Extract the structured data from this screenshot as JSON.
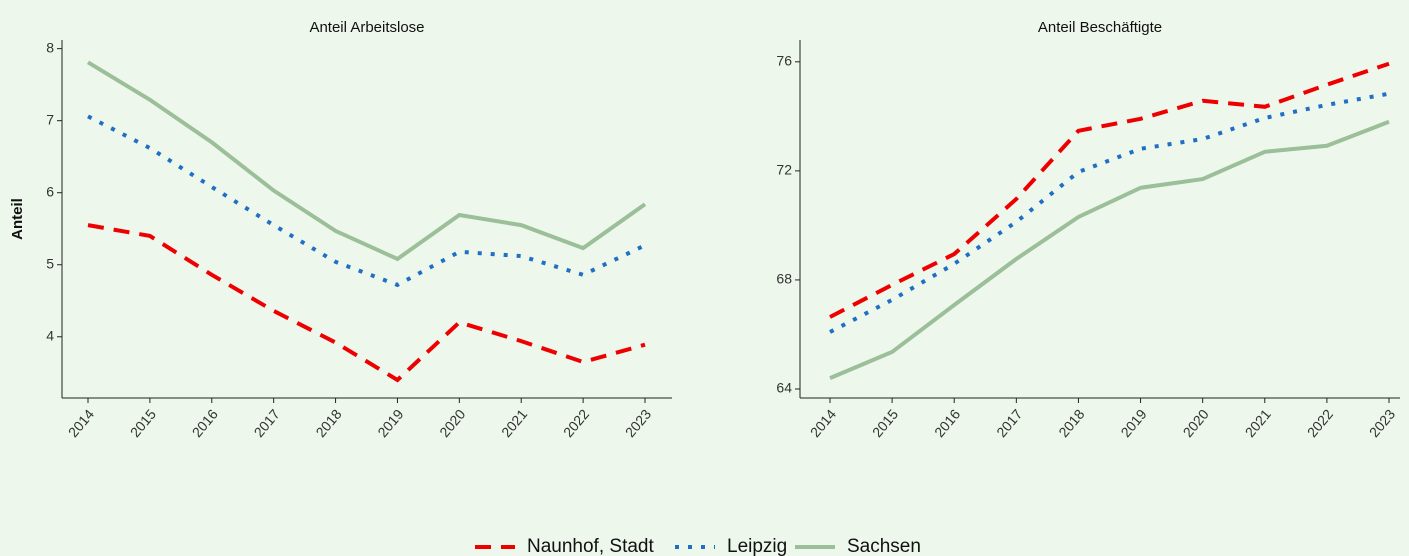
{
  "chart_data": [
    {
      "type": "line",
      "title": "Anteil Arbeitslose",
      "y_label": "Anteil",
      "categories": [
        "2014",
        "2015",
        "2016",
        "2017",
        "2018",
        "2019",
        "2020",
        "2021",
        "2022",
        "2023"
      ],
      "ylim": [
        3.15,
        8.12
      ],
      "yticks": [
        4,
        5,
        6,
        7,
        8
      ],
      "series": [
        {
          "name": "Naunhof, Stadt",
          "color": "#ee0000",
          "style": "dashed",
          "values": [
            5.55,
            5.4,
            4.86,
            4.36,
            3.92,
            3.4,
            4.2,
            3.94,
            3.65,
            3.89
          ]
        },
        {
          "name": "Leipzig",
          "color": "#1f6fc5",
          "style": "dotted",
          "values": [
            7.06,
            6.62,
            6.08,
            5.55,
            5.04,
            4.72,
            5.18,
            5.12,
            4.86,
            5.27
          ]
        },
        {
          "name": "Sachsen",
          "color": "#9bbf98",
          "style": "solid",
          "values": [
            7.81,
            7.29,
            6.7,
            6.03,
            5.47,
            5.08,
            5.69,
            5.55,
            5.23,
            5.84
          ]
        }
      ]
    },
    {
      "type": "line",
      "title": "Anteil Beschäftigte",
      "categories": [
        "2014",
        "2015",
        "2016",
        "2017",
        "2018",
        "2019",
        "2020",
        "2021",
        "2022",
        "2023"
      ],
      "ylim": [
        63.67,
        76.8
      ],
      "yticks": [
        64,
        68,
        72,
        76
      ],
      "series": [
        {
          "name": "Naunhof, Stadt",
          "color": "#ee0000",
          "style": "dashed",
          "values": [
            66.64,
            67.82,
            68.95,
            70.97,
            73.47,
            73.91,
            74.57,
            74.35,
            75.16,
            75.93
          ]
        },
        {
          "name": "Leipzig",
          "color": "#1f6fc5",
          "style": "dotted",
          "values": [
            66.09,
            67.27,
            68.59,
            70.13,
            71.96,
            72.81,
            73.17,
            73.94,
            74.42,
            74.83
          ]
        },
        {
          "name": "Sachsen",
          "color": "#9bbf98",
          "style": "solid",
          "values": [
            64.4,
            65.36,
            67.08,
            68.77,
            70.31,
            71.38,
            71.7,
            72.7,
            72.92,
            73.8
          ]
        }
      ]
    }
  ]
}
